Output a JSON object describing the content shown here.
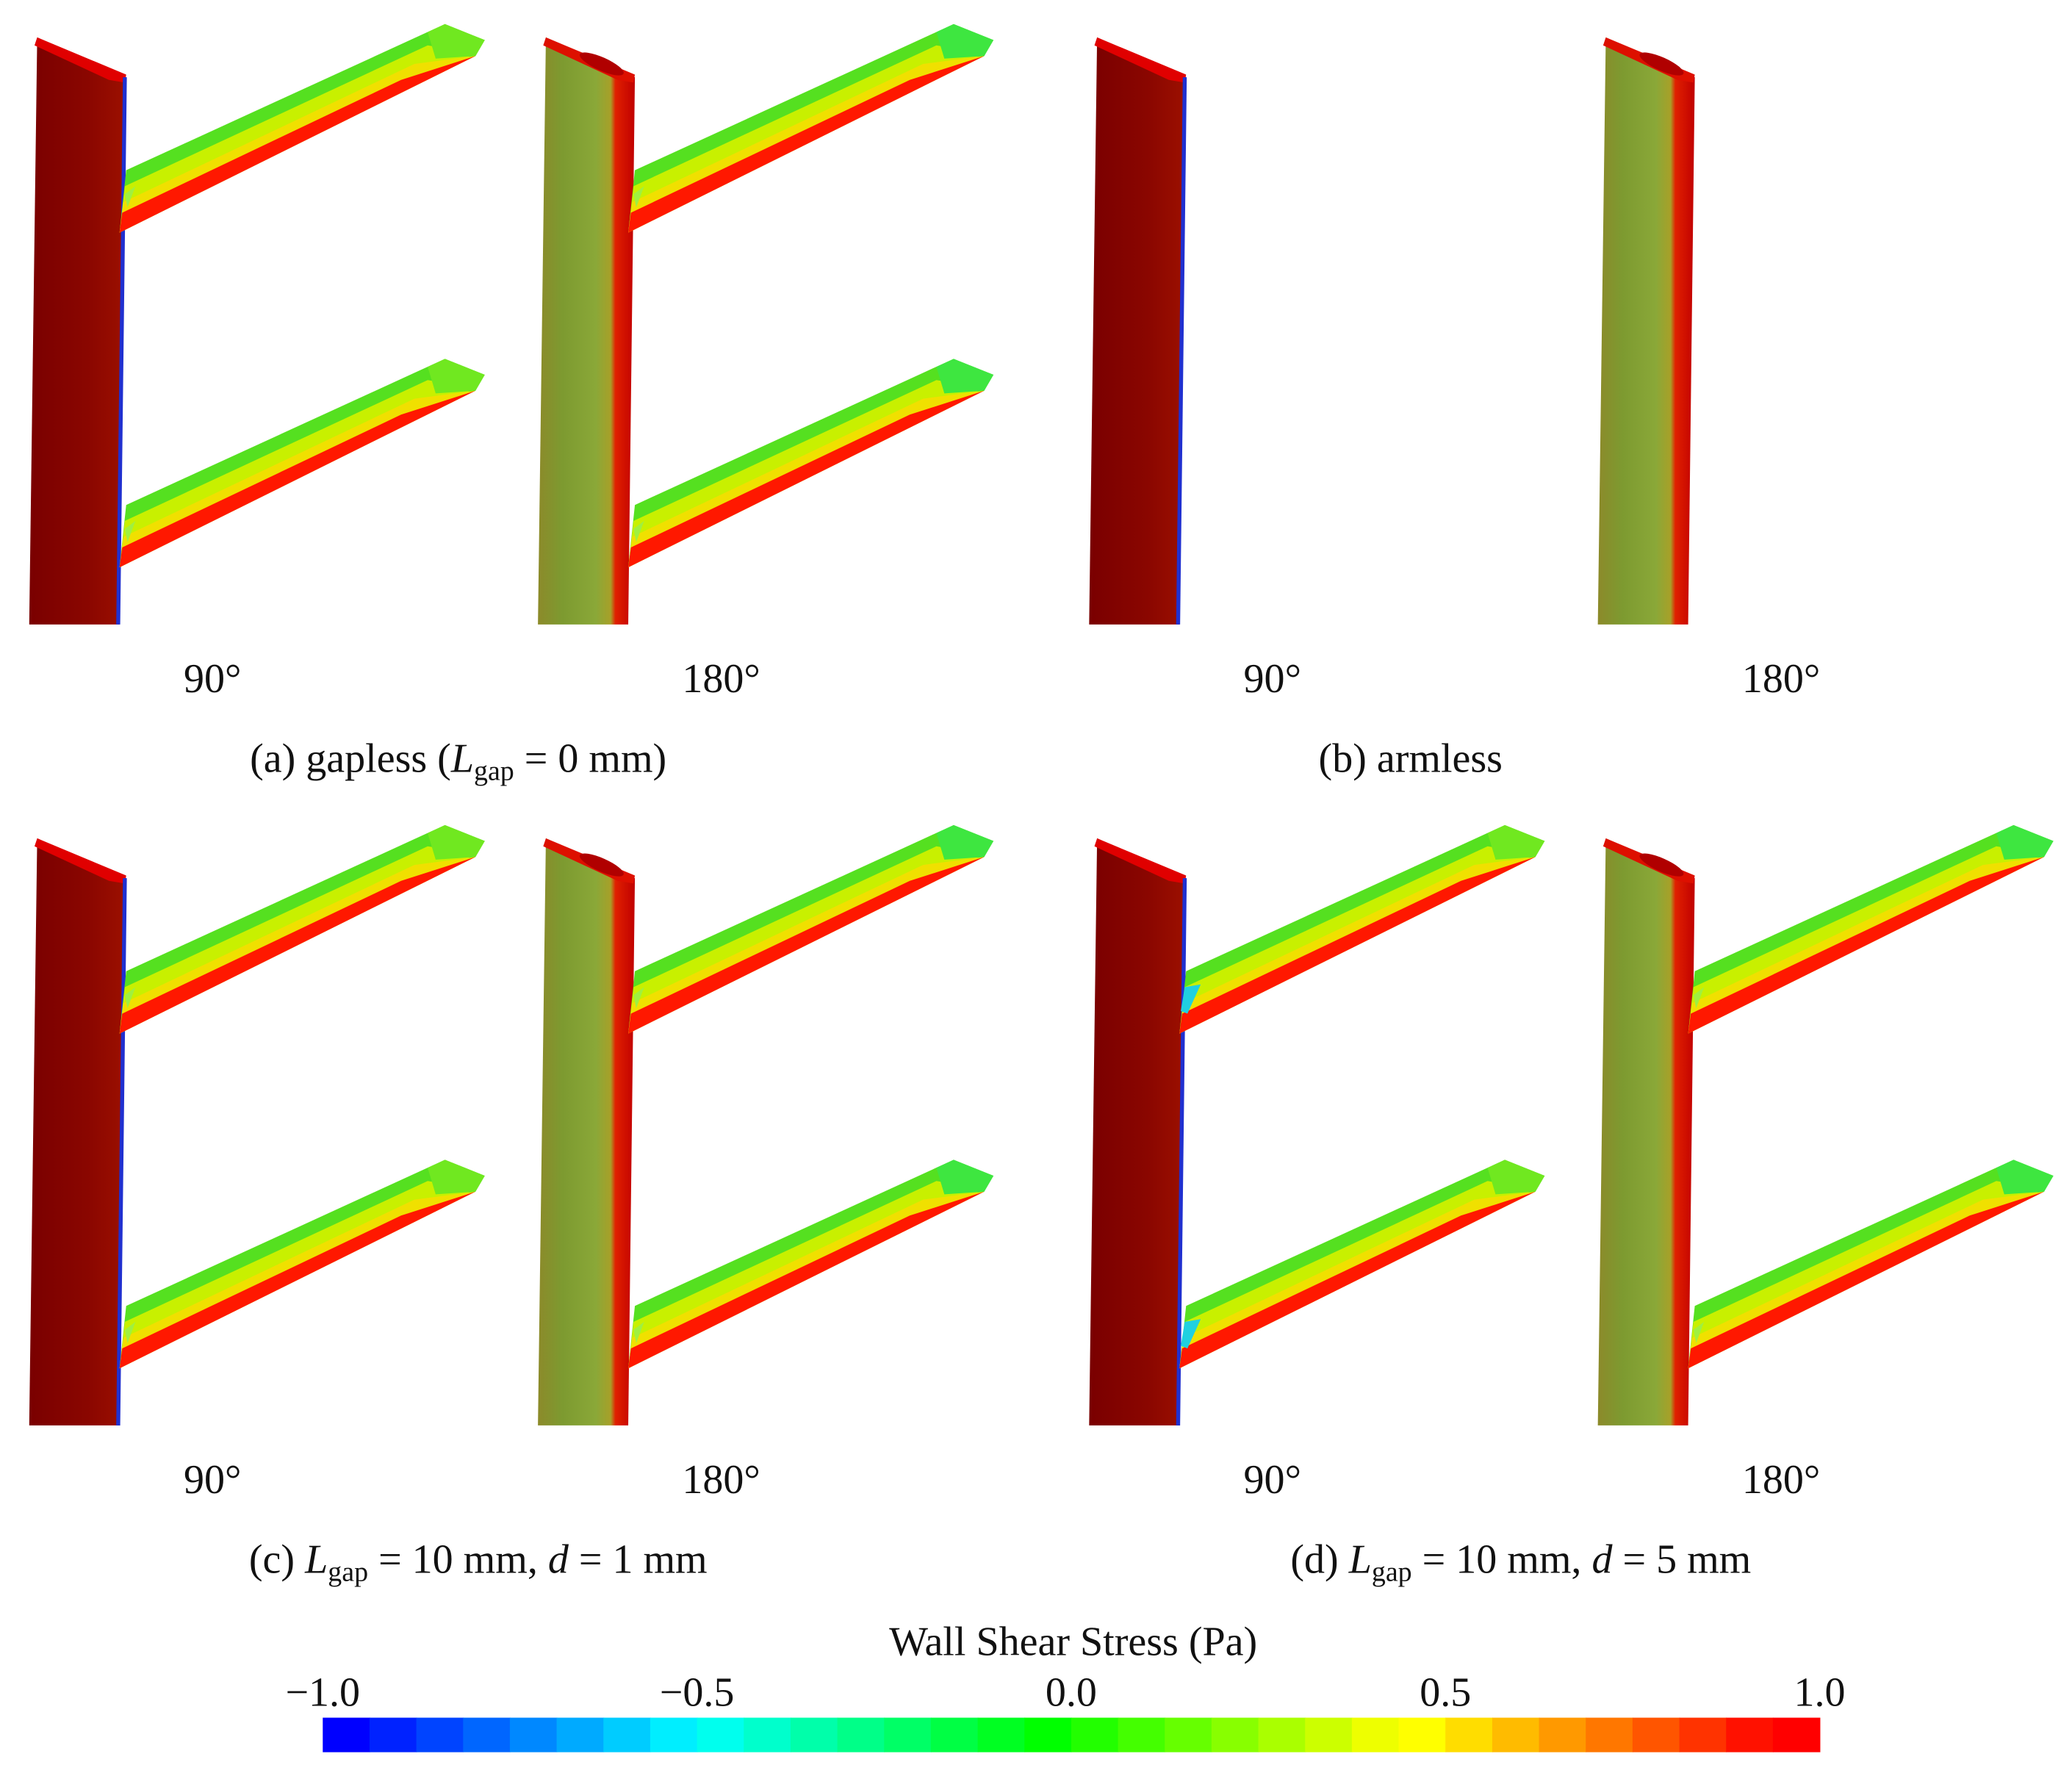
{
  "panels": [
    {
      "caption": [
        {
          "text": "(a) gapless ("
        },
        {
          "text": "L",
          "style": "italic"
        },
        {
          "text": "gap",
          "style": "sub"
        },
        {
          "text": " = 0 mm)"
        }
      ],
      "views": [
        "90°",
        "180°"
      ],
      "arms": true
    },
    {
      "caption": [
        {
          "text": "(b) armless"
        }
      ],
      "views": [
        "90°",
        "180°"
      ],
      "arms": false
    },
    {
      "caption": [
        {
          "text": "(c) "
        },
        {
          "text": "L",
          "style": "italic"
        },
        {
          "text": "gap",
          "style": "sub"
        },
        {
          "text": " = 10 mm, "
        },
        {
          "text": "d",
          "style": "italic"
        },
        {
          "text": " = 1 mm"
        }
      ],
      "views": [
        "90°",
        "180°"
      ],
      "arms": true
    },
    {
      "caption": [
        {
          "text": "(d) "
        },
        {
          "text": "L",
          "style": "italic"
        },
        {
          "text": "gap",
          "style": "sub"
        },
        {
          "text": " = 10 mm, "
        },
        {
          "text": "d",
          "style": "italic"
        },
        {
          "text": " = 5 mm"
        }
      ],
      "views": [
        "90°",
        "180°"
      ],
      "arms": true
    }
  ],
  "colorbar": {
    "title": "Wall Shear Stress (Pa)",
    "range": [
      -1.0,
      1.0
    ],
    "ticks": [
      {
        "value": -1.0,
        "label": "−1.0"
      },
      {
        "value": -0.5,
        "label": "−0.5"
      },
      {
        "value": 0.0,
        "label": "0.0"
      },
      0.5,
      {
        "value": 1.0,
        "label": "1.0"
      }
    ],
    "colors": [
      "#0000ff",
      "#0022ff",
      "#0044ff",
      "#0066ff",
      "#0088ff",
      "#00aaff",
      "#00ccff",
      "#00eeff",
      "#00ffee",
      "#00ffcc",
      "#00ffaa",
      "#00ff88",
      "#00ff66",
      "#00ff44",
      "#00ff22",
      "#00ff00",
      "#22ff00",
      "#44ff00",
      "#66ff00",
      "#88ff00",
      "#aaff00",
      "#ccff00",
      "#eeff00",
      "#ffff00",
      "#ffdd00",
      "#ffbb00",
      "#ff9900",
      "#ff7700",
      "#ff5500",
      "#ff3300",
      "#ff1100",
      "#ff0000"
    ]
  }
}
